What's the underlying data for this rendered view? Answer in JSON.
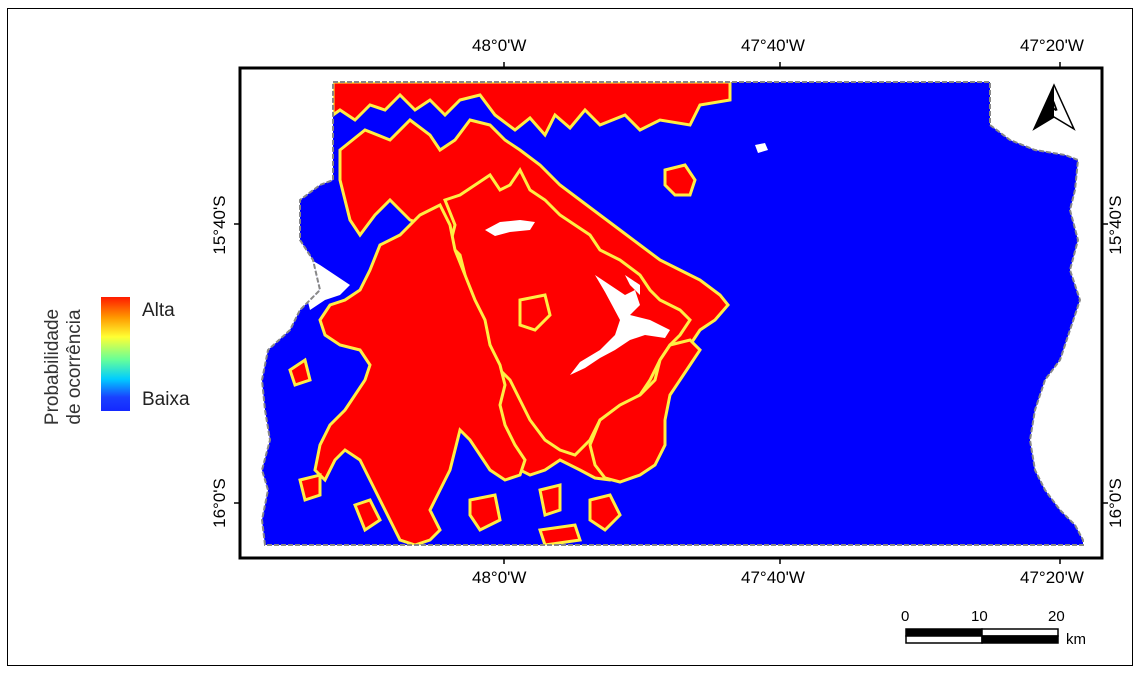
{
  "map": {
    "top_ticks": [
      "48°0'W",
      "47°40'W",
      "47°20'W"
    ],
    "bottom_ticks": [
      "48°0'W",
      "47°40'W",
      "47°20'W"
    ],
    "left_ticks": [
      "15°40'S",
      "16°0'S"
    ],
    "right_ticks": [
      "15°40'S",
      "16°0'S"
    ],
    "colors": {
      "high": "#ff0000",
      "low": "#0000ff",
      "water": "#ffffff",
      "border": "#888888"
    }
  },
  "legend": {
    "title_line1": "Probabilidade",
    "title_line2": "de ocorrência",
    "high_label": "Alta",
    "low_label": "Baixa"
  },
  "scale_bar": {
    "labels": [
      "0",
      "10",
      "20"
    ],
    "unit": "km"
  },
  "north_arrow": {
    "letter": "N"
  }
}
